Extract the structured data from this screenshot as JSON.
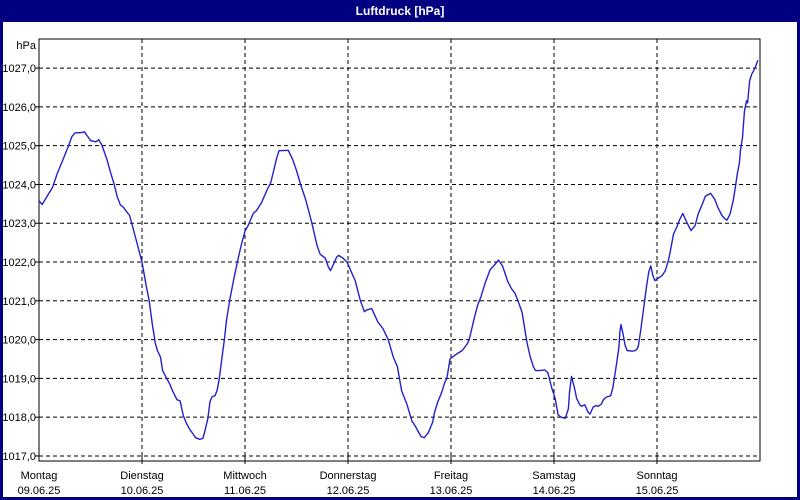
{
  "window": {
    "title": "Luftdruck [hPa]"
  },
  "colors": {
    "titlebar_bg": "#000080",
    "titlebar_text": "#FFFFFF",
    "window_border": "#000080",
    "plot_background": "#FFFFFF",
    "axis": "#000000",
    "grid": "#000000",
    "text": "#000000",
    "series_line": "#2222CC"
  },
  "chart_data": {
    "type": "line",
    "title": "Luftdruck [hPa]",
    "ylabel": "hPa",
    "grid": "dashed",
    "legend": "none",
    "ylim": [
      1016.87,
      1027.75
    ],
    "y_ticks": [
      1027,
      1026,
      1025,
      1024,
      1023,
      1022,
      1021,
      1020,
      1019,
      1018,
      1017
    ],
    "y_tick_labels": [
      "1027,0",
      "1026,0",
      "1025,0",
      "1024,0",
      "1023,0",
      "1022,0",
      "1021,0",
      "1020,0",
      "1019,0",
      "1018,0",
      "1017,0"
    ],
    "x_range_days": [
      0,
      7
    ],
    "x_days": [
      {
        "name": "Montag",
        "date": "09.06.25"
      },
      {
        "name": "Dienstag",
        "date": "10.06.25"
      },
      {
        "name": "Mittwoch",
        "date": "11.06.25"
      },
      {
        "name": "Donnerstag",
        "date": "12.06.25"
      },
      {
        "name": "Freitag",
        "date": "13.06.25"
      },
      {
        "name": "Samstag",
        "date": "14.06.25"
      },
      {
        "name": "Sonntag",
        "date": "15.06.25"
      }
    ],
    "series": [
      {
        "name": "Luftdruck",
        "unit": "hPa",
        "points": [
          [
            0.0,
            1023.58
          ],
          [
            0.03,
            1023.48
          ],
          [
            0.08,
            1023.7
          ],
          [
            0.13,
            1023.92
          ],
          [
            0.18,
            1024.3
          ],
          [
            0.23,
            1024.62
          ],
          [
            0.28,
            1024.95
          ],
          [
            0.32,
            1025.24
          ],
          [
            0.35,
            1025.33
          ],
          [
            0.42,
            1025.34
          ],
          [
            0.44,
            1025.36
          ],
          [
            0.47,
            1025.25
          ],
          [
            0.5,
            1025.13
          ],
          [
            0.55,
            1025.1
          ],
          [
            0.58,
            1025.15
          ],
          [
            0.61,
            1025.02
          ],
          [
            0.66,
            1024.64
          ],
          [
            0.69,
            1024.35
          ],
          [
            0.73,
            1024.0
          ],
          [
            0.76,
            1023.68
          ],
          [
            0.79,
            1023.47
          ],
          [
            0.82,
            1023.41
          ],
          [
            0.85,
            1023.3
          ],
          [
            0.88,
            1023.2
          ],
          [
            0.92,
            1022.8
          ],
          [
            0.96,
            1022.4
          ],
          [
            1.0,
            1022.0
          ],
          [
            1.04,
            1021.4
          ],
          [
            1.07,
            1021.0
          ],
          [
            1.1,
            1020.4
          ],
          [
            1.13,
            1019.9
          ],
          [
            1.15,
            1019.72
          ],
          [
            1.18,
            1019.55
          ],
          [
            1.2,
            1019.2
          ],
          [
            1.24,
            1019.0
          ],
          [
            1.27,
            1018.85
          ],
          [
            1.3,
            1018.66
          ],
          [
            1.34,
            1018.45
          ],
          [
            1.37,
            1018.42
          ],
          [
            1.4,
            1018.05
          ],
          [
            1.43,
            1017.85
          ],
          [
            1.46,
            1017.7
          ],
          [
            1.5,
            1017.55
          ],
          [
            1.52,
            1017.47
          ],
          [
            1.56,
            1017.43
          ],
          [
            1.59,
            1017.45
          ],
          [
            1.61,
            1017.63
          ],
          [
            1.64,
            1017.97
          ],
          [
            1.66,
            1018.4
          ],
          [
            1.68,
            1018.52
          ],
          [
            1.71,
            1018.56
          ],
          [
            1.73,
            1018.7
          ],
          [
            1.75,
            1019.0
          ],
          [
            1.78,
            1019.6
          ],
          [
            1.8,
            1020.0
          ],
          [
            1.82,
            1020.5
          ],
          [
            1.85,
            1021.0
          ],
          [
            1.89,
            1021.55
          ],
          [
            1.93,
            1022.05
          ],
          [
            1.96,
            1022.4
          ],
          [
            2.0,
            1022.8
          ],
          [
            2.03,
            1022.94
          ],
          [
            2.08,
            1023.25
          ],
          [
            2.11,
            1023.32
          ],
          [
            2.16,
            1023.53
          ],
          [
            2.21,
            1023.83
          ],
          [
            2.25,
            1024.05
          ],
          [
            2.31,
            1024.7
          ],
          [
            2.33,
            1024.87
          ],
          [
            2.42,
            1024.88
          ],
          [
            2.46,
            1024.66
          ],
          [
            2.5,
            1024.36
          ],
          [
            2.54,
            1024.0
          ],
          [
            2.59,
            1023.6
          ],
          [
            2.65,
            1023.0
          ],
          [
            2.7,
            1022.42
          ],
          [
            2.73,
            1022.2
          ],
          [
            2.78,
            1022.1
          ],
          [
            2.81,
            1021.87
          ],
          [
            2.83,
            1021.78
          ],
          [
            2.86,
            1021.95
          ],
          [
            2.89,
            1022.13
          ],
          [
            2.91,
            1022.17
          ],
          [
            2.95,
            1022.1
          ],
          [
            2.99,
            1022.0
          ],
          [
            3.04,
            1021.7
          ],
          [
            3.07,
            1021.52
          ],
          [
            3.12,
            1021.0
          ],
          [
            3.16,
            1020.72
          ],
          [
            3.18,
            1020.76
          ],
          [
            3.23,
            1020.8
          ],
          [
            3.29,
            1020.45
          ],
          [
            3.34,
            1020.28
          ],
          [
            3.39,
            1020.0
          ],
          [
            3.44,
            1019.55
          ],
          [
            3.48,
            1019.3
          ],
          [
            3.52,
            1018.68
          ],
          [
            3.57,
            1018.35
          ],
          [
            3.62,
            1017.9
          ],
          [
            3.65,
            1017.78
          ],
          [
            3.68,
            1017.64
          ],
          [
            3.71,
            1017.5
          ],
          [
            3.74,
            1017.47
          ],
          [
            3.78,
            1017.6
          ],
          [
            3.82,
            1017.86
          ],
          [
            3.84,
            1018.12
          ],
          [
            3.87,
            1018.38
          ],
          [
            3.91,
            1018.64
          ],
          [
            3.94,
            1018.9
          ],
          [
            3.96,
            1019.0
          ],
          [
            3.99,
            1019.5
          ],
          [
            4.01,
            1019.54
          ],
          [
            4.06,
            1019.64
          ],
          [
            4.11,
            1019.72
          ],
          [
            4.16,
            1019.9
          ],
          [
            4.18,
            1020.03
          ],
          [
            4.23,
            1020.6
          ],
          [
            4.26,
            1020.9
          ],
          [
            4.29,
            1021.1
          ],
          [
            4.33,
            1021.45
          ],
          [
            4.38,
            1021.8
          ],
          [
            4.43,
            1021.95
          ],
          [
            4.46,
            1022.05
          ],
          [
            4.5,
            1021.9
          ],
          [
            4.52,
            1021.74
          ],
          [
            4.55,
            1021.5
          ],
          [
            4.59,
            1021.3
          ],
          [
            4.62,
            1021.2
          ],
          [
            4.65,
            1021.0
          ],
          [
            4.69,
            1020.7
          ],
          [
            4.72,
            1020.2
          ],
          [
            4.74,
            1019.9
          ],
          [
            4.77,
            1019.55
          ],
          [
            4.8,
            1019.3
          ],
          [
            4.82,
            1019.2
          ],
          [
            4.86,
            1019.2
          ],
          [
            4.91,
            1019.22
          ],
          [
            4.94,
            1019.15
          ],
          [
            4.98,
            1018.74
          ],
          [
            5.01,
            1018.5
          ],
          [
            5.04,
            1018.06
          ],
          [
            5.07,
            1018.0
          ],
          [
            5.11,
            1017.97
          ],
          [
            5.14,
            1018.22
          ],
          [
            5.15,
            1018.64
          ],
          [
            5.17,
            1019.05
          ],
          [
            5.2,
            1018.74
          ],
          [
            5.22,
            1018.48
          ],
          [
            5.25,
            1018.32
          ],
          [
            5.27,
            1018.28
          ],
          [
            5.3,
            1018.32
          ],
          [
            5.33,
            1018.13
          ],
          [
            5.35,
            1018.08
          ],
          [
            5.38,
            1018.26
          ],
          [
            5.41,
            1018.3
          ],
          [
            5.43,
            1018.28
          ],
          [
            5.46,
            1018.34
          ],
          [
            5.48,
            1018.45
          ],
          [
            5.51,
            1018.52
          ],
          [
            5.55,
            1018.55
          ],
          [
            5.57,
            1018.74
          ],
          [
            5.59,
            1019.08
          ],
          [
            5.61,
            1019.42
          ],
          [
            5.63,
            1019.8
          ],
          [
            5.64,
            1020.2
          ],
          [
            5.65,
            1020.39
          ],
          [
            5.67,
            1020.15
          ],
          [
            5.69,
            1019.85
          ],
          [
            5.71,
            1019.72
          ],
          [
            5.76,
            1019.7
          ],
          [
            5.79,
            1019.72
          ],
          [
            5.81,
            1019.77
          ],
          [
            5.82,
            1019.86
          ],
          [
            5.84,
            1020.2
          ],
          [
            5.86,
            1020.6
          ],
          [
            5.88,
            1021.0
          ],
          [
            5.9,
            1021.4
          ],
          [
            5.92,
            1021.75
          ],
          [
            5.94,
            1021.9
          ],
          [
            5.96,
            1021.65
          ],
          [
            5.98,
            1021.52
          ],
          [
            6.0,
            1021.56
          ],
          [
            6.05,
            1021.65
          ],
          [
            6.08,
            1021.77
          ],
          [
            6.11,
            1022.03
          ],
          [
            6.13,
            1022.29
          ],
          [
            6.16,
            1022.72
          ],
          [
            6.19,
            1022.89
          ],
          [
            6.22,
            1023.1
          ],
          [
            6.25,
            1023.25
          ],
          [
            6.29,
            1023.02
          ],
          [
            6.33,
            1022.81
          ],
          [
            6.37,
            1022.94
          ],
          [
            6.4,
            1023.24
          ],
          [
            6.44,
            1023.49
          ],
          [
            6.47,
            1023.7
          ],
          [
            6.52,
            1023.77
          ],
          [
            6.56,
            1023.62
          ],
          [
            6.59,
            1023.41
          ],
          [
            6.63,
            1023.2
          ],
          [
            6.66,
            1023.11
          ],
          [
            6.68,
            1023.08
          ],
          [
            6.71,
            1023.24
          ],
          [
            6.74,
            1023.58
          ],
          [
            6.76,
            1023.92
          ],
          [
            6.78,
            1024.27
          ],
          [
            6.8,
            1024.55
          ],
          [
            6.81,
            1024.87
          ],
          [
            6.83,
            1025.21
          ],
          [
            6.84,
            1025.56
          ],
          [
            6.85,
            1025.9
          ],
          [
            6.87,
            1026.16
          ],
          [
            6.88,
            1026.1
          ],
          [
            6.89,
            1026.42
          ],
          [
            6.9,
            1026.68
          ],
          [
            6.92,
            1026.85
          ],
          [
            6.93,
            1026.89
          ],
          [
            6.95,
            1027.0
          ],
          [
            6.98,
            1027.2
          ]
        ]
      }
    ]
  }
}
